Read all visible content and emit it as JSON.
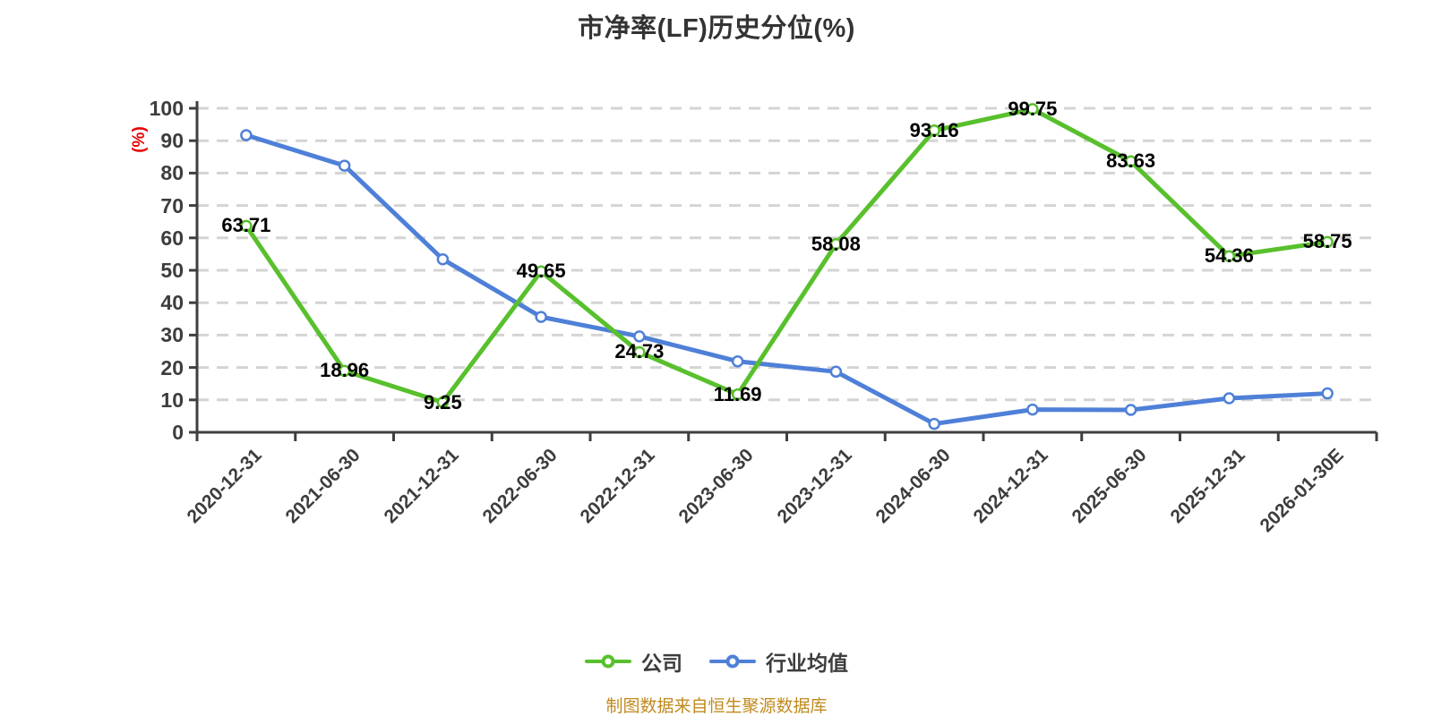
{
  "title": "市净率(LF)历史分位(%)",
  "y_axis": {
    "unit_label": "(%)",
    "unit_color": "#e60000",
    "tick_color": "#3d3d3d"
  },
  "footer": {
    "text": "制图数据来自恒生聚源数据库",
    "color": "#c18a1f"
  },
  "legend": {
    "items": [
      {
        "label": "公司",
        "color": "#58c02c"
      },
      {
        "label": "行业均值",
        "color": "#4f80d8"
      }
    ]
  },
  "colors": {
    "company_line": "#58c02c",
    "industry_line": "#4f80d8",
    "axis": "#3f3f3f",
    "gridline": "#d4d4d4",
    "marker_fill": "#ffffff",
    "value_label": "#000000",
    "title": "#333333"
  },
  "chart_data": {
    "type": "line",
    "title": "市净率(LF)历史分位(%)",
    "xlabel": "",
    "ylabel": "(%)",
    "ylim": [
      0,
      100
    ],
    "yticks": [
      0,
      10,
      20,
      30,
      40,
      50,
      60,
      70,
      80,
      90,
      100
    ],
    "grid": "horizontal-dashed",
    "legend_position": "bottom",
    "categories": [
      "2020-12-31",
      "2021-06-30",
      "2021-12-31",
      "2022-06-30",
      "2022-12-31",
      "2023-06-30",
      "2023-12-31",
      "2024-06-30",
      "2024-12-31",
      "2025-06-30",
      "2025-12-31",
      "2026-01-30E"
    ],
    "series": [
      {
        "name": "公司",
        "color": "#58c02c",
        "show_labels": true,
        "values": [
          63.71,
          18.96,
          9.25,
          49.65,
          24.73,
          11.69,
          58.08,
          93.16,
          99.75,
          83.63,
          54.36,
          58.75
        ]
      },
      {
        "name": "行业均值",
        "color": "#4f80d8",
        "show_labels": false,
        "values": [
          91.7,
          82.3,
          53.4,
          35.6,
          29.6,
          21.9,
          18.7,
          2.6,
          7.0,
          6.9,
          10.5,
          12.0
        ]
      }
    ]
  }
}
